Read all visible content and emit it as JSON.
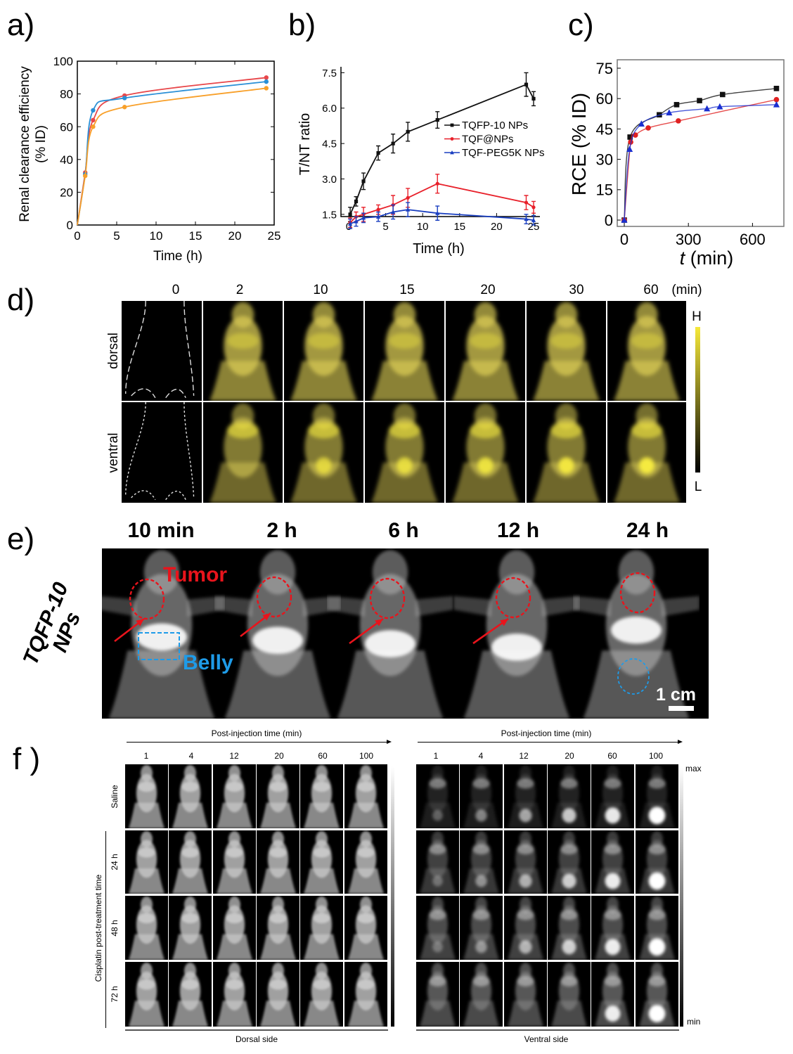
{
  "panels": {
    "a": "a)",
    "b": "b)",
    "c": "c)",
    "d": "d)",
    "e": "e)",
    "f": "f )"
  },
  "chart_data": [
    {
      "id": "a",
      "type": "scatter",
      "fit_lines": true,
      "xlabel": "Time (h)",
      "ylabel_lines": [
        "Renal clearance efficiency",
        "(% ID)"
      ],
      "xlim": [
        0,
        25
      ],
      "ylim": [
        0,
        100
      ],
      "xticks": [
        0,
        5,
        10,
        15,
        20,
        25
      ],
      "yticks": [
        0,
        20,
        40,
        60,
        80,
        100
      ],
      "series": [
        {
          "name": "red",
          "color": "#e8474a",
          "x": [
            1,
            2,
            6,
            24
          ],
          "y": [
            32,
            64,
            79,
            90
          ]
        },
        {
          "name": "blue",
          "color": "#2a8fd6",
          "x": [
            1,
            2,
            6,
            24
          ],
          "y": [
            31,
            70,
            77.5,
            87.5
          ]
        },
        {
          "name": "orange",
          "color": "#f8a02a",
          "x": [
            1,
            2,
            6,
            24
          ],
          "y": [
            30,
            60,
            72,
            83.5
          ]
        }
      ]
    },
    {
      "id": "b",
      "type": "line",
      "xlabel": "Time (h)",
      "ylabel": "T/NT ratio",
      "xlim": [
        0,
        25
      ],
      "ylim": [
        0.9,
        7.9
      ],
      "xticks": [
        0,
        5,
        10,
        15,
        20,
        25
      ],
      "yticks": [
        1.5,
        3.0,
        4.5,
        6.0,
        7.5
      ],
      "ytick_labels": [
        "1.5",
        "3.0",
        "4.5",
        "6.0",
        "7.5"
      ],
      "legend_position": "center-right",
      "series": [
        {
          "name": "TQFP-10 NPs",
          "color": "#111111",
          "marker": "square",
          "x": [
            0.2,
            1,
            2,
            4,
            6,
            8,
            12,
            24,
            25
          ],
          "y": [
            1.5,
            2.05,
            2.9,
            4.1,
            4.5,
            5.0,
            5.5,
            7.0,
            6.4
          ],
          "err": [
            0.3,
            0.2,
            0.35,
            0.3,
            0.4,
            0.4,
            0.35,
            0.5,
            0.3
          ]
        },
        {
          "name": "TQF@NPs",
          "color": "#e8202a",
          "marker": "circle",
          "x": [
            0.2,
            1,
            2,
            4,
            6,
            8,
            12,
            24,
            25
          ],
          "y": [
            1.15,
            1.4,
            1.5,
            1.7,
            1.9,
            2.2,
            2.8,
            2.0,
            1.8
          ],
          "err": [
            0.2,
            0.2,
            0.3,
            0.2,
            0.4,
            0.4,
            0.4,
            0.3,
            0.25
          ]
        },
        {
          "name": "TQF-PEG5K NPs",
          "color": "#1a3fc0",
          "marker": "triangle",
          "x": [
            0.2,
            1,
            2,
            4,
            6,
            8,
            12,
            24,
            25
          ],
          "y": [
            1.1,
            1.2,
            1.35,
            1.4,
            1.6,
            1.7,
            1.55,
            1.3,
            1.25
          ],
          "err": [
            0.2,
            0.2,
            0.2,
            0.2,
            0.3,
            0.3,
            0.3,
            0.2,
            0.2
          ]
        }
      ]
    },
    {
      "id": "c",
      "type": "scatter",
      "fit_lines": true,
      "xlabel": "t (min)",
      "ylabel": "RCE (% ID)",
      "xlim": [
        0,
        750
      ],
      "ylim": [
        0,
        75
      ],
      "xticks": [
        0,
        300,
        600
      ],
      "yticks": [
        0,
        15,
        30,
        45,
        60,
        75
      ],
      "series": [
        {
          "name": "black",
          "color": "#111111",
          "marker": "square",
          "x": [
            0,
            27,
            164,
            245,
            352,
            460,
            712
          ],
          "y": [
            0,
            41,
            52,
            57,
            59,
            62,
            65
          ]
        },
        {
          "name": "red",
          "color": "#e02020",
          "marker": "circle",
          "x": [
            0,
            30,
            52,
            112,
            253,
            712
          ],
          "y": [
            0,
            38.5,
            42,
            45.5,
            49,
            59.5
          ]
        },
        {
          "name": "blue",
          "color": "#1a2fd0",
          "marker": "triangle",
          "x": [
            0,
            25,
            80,
            210,
            387,
            447,
            712
          ],
          "y": [
            0,
            35,
            47.5,
            53,
            55,
            56,
            57
          ]
        }
      ]
    }
  ],
  "panel_d": {
    "time_labels": [
      "0",
      "2",
      "10",
      "15",
      "20",
      "30",
      "60"
    ],
    "unit": "(min)",
    "rows": [
      "dorsal",
      "ventral"
    ],
    "colorbar": {
      "high": "H",
      "low": "L"
    }
  },
  "panel_e": {
    "time_labels": [
      "10 min",
      "2 h",
      "6 h",
      "12 h",
      "24 h"
    ],
    "row_label_lines": [
      "TQFP-10",
      "NPs"
    ],
    "tumor_label": "Tumor",
    "belly_label": "Belly",
    "scale_label": "1 cm"
  },
  "panel_f": {
    "axis_title": "Post-injection time (min)",
    "time_labels": [
      "1",
      "4",
      "12",
      "20",
      "60",
      "100"
    ],
    "row_labels": [
      "Saline",
      "24 h",
      "48 h",
      "72 h"
    ],
    "group_label": "Cisplatin post-treatment  time",
    "left_caption": "Dorsal side",
    "right_caption": "Ventral side",
    "colorbar": {
      "max": "max",
      "min": "min"
    }
  }
}
